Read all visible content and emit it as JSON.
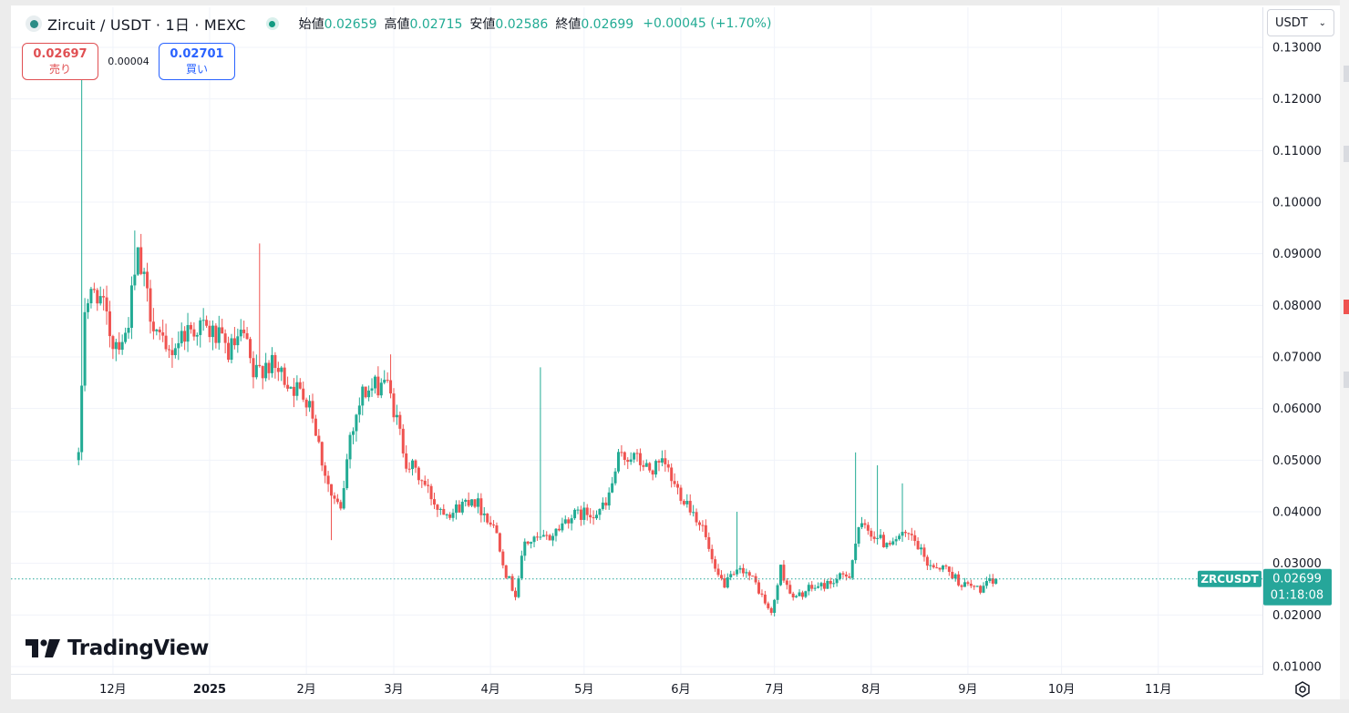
{
  "header": {
    "title": "Zircuit / USDT · 1日 · MEXC",
    "ohlc": [
      {
        "label": "始値",
        "value": "0.02659"
      },
      {
        "label": "高値",
        "value": "0.02715"
      },
      {
        "label": "安値",
        "value": "0.02586"
      },
      {
        "label": "終値",
        "value": "0.02699"
      }
    ],
    "change": "+0.00045 (+1.70%)"
  },
  "trade": {
    "sell_price": "0.02697",
    "sell_label": "売り",
    "spread": "0.00004",
    "buy_price": "0.02701",
    "buy_label": "買い"
  },
  "currency_selector": "USDT",
  "price_label": {
    "symbol": "ZRCUSDT",
    "price": "0.02699",
    "countdown": "01:18:08"
  },
  "branding": "TradingView",
  "colors": {
    "up": "#22ab94",
    "down": "#ef5350",
    "grid": "#f0f3fa",
    "accent": "#26a69a"
  },
  "chart_data": {
    "type": "candlestick",
    "y_ticks": [
      "0.13000",
      "0.12000",
      "0.11000",
      "0.10000",
      "0.09000",
      "0.08000",
      "0.07000",
      "0.06000",
      "0.05000",
      "0.04000",
      "0.03000",
      "0.02000",
      "0.01000"
    ],
    "x_ticks": [
      {
        "label": "12月",
        "date": "2024-12-01",
        "bold": false
      },
      {
        "label": "2025",
        "date": "2025-01-01",
        "bold": true
      },
      {
        "label": "2月",
        "date": "2025-02-01",
        "bold": false
      },
      {
        "label": "3月",
        "date": "2025-03-01",
        "bold": false
      },
      {
        "label": "4月",
        "date": "2025-04-01",
        "bold": false
      },
      {
        "label": "5月",
        "date": "2025-05-01",
        "bold": false
      },
      {
        "label": "6月",
        "date": "2025-06-01",
        "bold": false
      },
      {
        "label": "7月",
        "date": "2025-07-01",
        "bold": false
      },
      {
        "label": "8月",
        "date": "2025-08-01",
        "bold": false
      },
      {
        "label": "9月",
        "date": "2025-09-01",
        "bold": false
      },
      {
        "label": "10月",
        "date": "2025-10-01",
        "bold": false
      },
      {
        "label": "11月",
        "date": "2025-11-01",
        "bold": false
      }
    ],
    "x_range": [
      "2024-11-10",
      "2025-11-30"
    ],
    "y_range": [
      0.007,
      0.135
    ],
    "last_price": 0.02699,
    "keypoints": [
      [
        "2024-11-20",
        0.05
      ],
      [
        "2024-11-22",
        0.08
      ],
      [
        "2024-11-26",
        0.083
      ],
      [
        "2024-12-01",
        0.073
      ],
      [
        "2024-12-05",
        0.074
      ],
      [
        "2024-12-09",
        0.089
      ],
      [
        "2024-12-13",
        0.079
      ],
      [
        "2024-12-18",
        0.07
      ],
      [
        "2024-12-24",
        0.075
      ],
      [
        "2024-12-29",
        0.076
      ],
      [
        "2025-01-03",
        0.074
      ],
      [
        "2025-01-07",
        0.071
      ],
      [
        "2025-01-12",
        0.074
      ],
      [
        "2025-01-15",
        0.066
      ],
      [
        "2025-01-19",
        0.069
      ],
      [
        "2025-01-25",
        0.066
      ],
      [
        "2025-01-30",
        0.063
      ],
      [
        "2025-02-02",
        0.062
      ],
      [
        "2025-02-06",
        0.05
      ],
      [
        "2025-02-09",
        0.043
      ],
      [
        "2025-02-12",
        0.04
      ],
      [
        "2025-02-15",
        0.055
      ],
      [
        "2025-02-19",
        0.063
      ],
      [
        "2025-02-23",
        0.064
      ],
      [
        "2025-02-26",
        0.066
      ],
      [
        "2025-03-01",
        0.06
      ],
      [
        "2025-03-05",
        0.05
      ],
      [
        "2025-03-10",
        0.046
      ],
      [
        "2025-03-15",
        0.041
      ],
      [
        "2025-03-20",
        0.04
      ],
      [
        "2025-03-26",
        0.043
      ],
      [
        "2025-03-31",
        0.039
      ],
      [
        "2025-04-03",
        0.036
      ],
      [
        "2025-04-06",
        0.028
      ],
      [
        "2025-04-09",
        0.024
      ],
      [
        "2025-04-12",
        0.034
      ],
      [
        "2025-04-20",
        0.035
      ],
      [
        "2025-04-26",
        0.039
      ],
      [
        "2025-05-04",
        0.04
      ],
      [
        "2025-05-08",
        0.041
      ],
      [
        "2025-05-12",
        0.05
      ],
      [
        "2025-05-16",
        0.051
      ],
      [
        "2025-05-22",
        0.048
      ],
      [
        "2025-05-27",
        0.049
      ],
      [
        "2025-05-30",
        0.045
      ],
      [
        "2025-06-03",
        0.042
      ],
      [
        "2025-06-08",
        0.037
      ],
      [
        "2025-06-12",
        0.028
      ],
      [
        "2025-06-15",
        0.026
      ],
      [
        "2025-06-21",
        0.029
      ],
      [
        "2025-06-25",
        0.026
      ],
      [
        "2025-06-30",
        0.02
      ],
      [
        "2025-07-03",
        0.029
      ],
      [
        "2025-07-07",
        0.023
      ],
      [
        "2025-07-12",
        0.025
      ],
      [
        "2025-07-18",
        0.026
      ],
      [
        "2025-07-25",
        0.028
      ],
      [
        "2025-07-28",
        0.037
      ],
      [
        "2025-08-01",
        0.036
      ],
      [
        "2025-08-05",
        0.034
      ],
      [
        "2025-08-09",
        0.035
      ],
      [
        "2025-08-14",
        0.035
      ],
      [
        "2025-08-19",
        0.03
      ],
      [
        "2025-08-25",
        0.029
      ],
      [
        "2025-08-30",
        0.026
      ],
      [
        "2025-09-05",
        0.025
      ],
      [
        "2025-09-10",
        0.02699
      ]
    ],
    "spikes": [
      {
        "date": "2024-11-21",
        "high": 0.125,
        "low": 0.05
      },
      {
        "date": "2024-12-08",
        "high": 0.0945
      },
      {
        "date": "2025-01-17",
        "high": 0.092
      },
      {
        "date": "2025-02-09",
        "low": 0.0345
      },
      {
        "date": "2025-02-28",
        "high": 0.0705
      },
      {
        "date": "2025-04-17",
        "high": 0.068
      },
      {
        "date": "2025-06-19",
        "high": 0.04
      },
      {
        "date": "2025-07-27",
        "high": 0.0515
      },
      {
        "date": "2025-08-03",
        "high": 0.049
      },
      {
        "date": "2025-08-11",
        "high": 0.0455
      }
    ]
  }
}
